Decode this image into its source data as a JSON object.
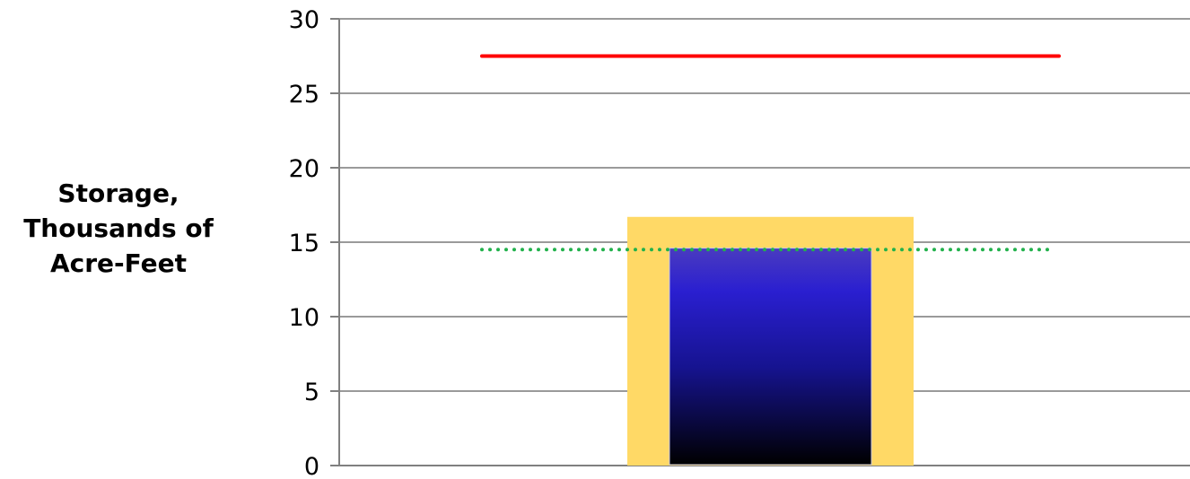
{
  "chart_data": {
    "type": "bar",
    "title": "",
    "xlabel": "",
    "ylabel_lines": [
      "Storage,",
      "Thousands of",
      "Acre-Feet"
    ],
    "ylim": [
      0,
      30
    ],
    "yticks": [
      {
        "value": 0,
        "label": "0"
      },
      {
        "value": 5,
        "label": "5"
      },
      {
        "value": 10,
        "label": "10"
      },
      {
        "value": 15,
        "label": "15"
      },
      {
        "value": 20,
        "label": "20"
      },
      {
        "value": 25,
        "label": "25"
      },
      {
        "value": 30,
        "label": "30"
      }
    ],
    "grid": true,
    "bars": [
      {
        "role": "range-band",
        "value": 16.7,
        "color": "#FFD966"
      },
      {
        "role": "current-storage",
        "value": 14.6,
        "color_top": "#2A1FD0",
        "color_bottom": "#000000"
      }
    ],
    "reference_lines": [
      {
        "role": "capacity",
        "value": 27.5,
        "style": "solid",
        "color": "#FF0000"
      },
      {
        "role": "average",
        "value": 14.5,
        "style": "dotted",
        "color": "#22B14C"
      }
    ]
  }
}
